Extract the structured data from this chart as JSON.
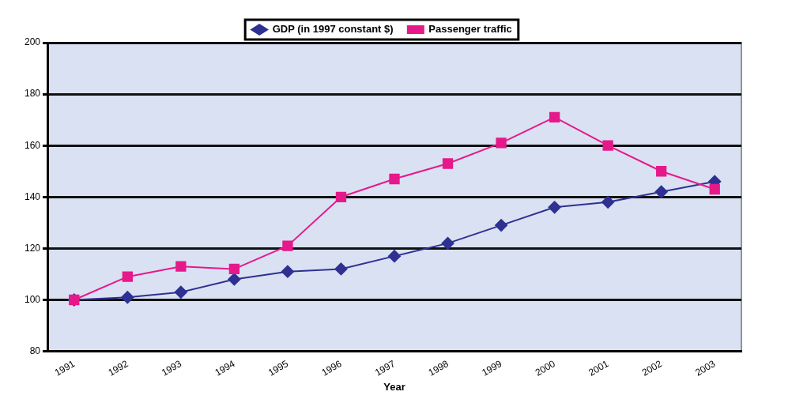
{
  "chart_data": {
    "type": "line",
    "xlabel": "Year",
    "categories": [
      "1991",
      "1992",
      "1993",
      "1994",
      "1995",
      "1996",
      "1997",
      "1998",
      "1999",
      "2000",
      "2001",
      "2002",
      "2003"
    ],
    "series": [
      {
        "name": "GDP (in 1997 constant $)",
        "color": "#2e3192",
        "marker": "diamond",
        "values": [
          100,
          101,
          103,
          108,
          111,
          112,
          117,
          122,
          129,
          136,
          138,
          142,
          146
        ]
      },
      {
        "name": "Passenger traffic",
        "color": "#e6198a",
        "marker": "square",
        "values": [
          100,
          109,
          113,
          112,
          121,
          140,
          147,
          153,
          161,
          171,
          160,
          150,
          143
        ]
      }
    ],
    "ylim": [
      80,
      200
    ],
    "yticks": [
      80,
      100,
      120,
      140,
      160,
      180,
      200
    ],
    "grid": "y",
    "legend": "top",
    "line_style": "solid"
  }
}
